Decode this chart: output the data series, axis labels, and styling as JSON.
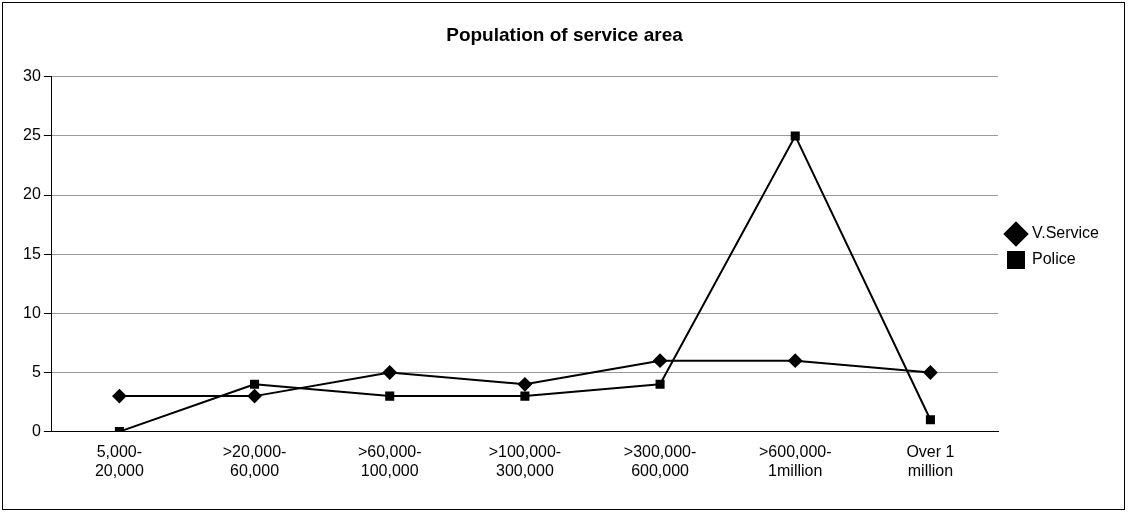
{
  "chart_data": {
    "type": "line",
    "title": "Population of service area",
    "categories": [
      "5,000-20,000",
      ">20,000-60,000",
      ">60,000-100,000",
      ">100,000-300,000",
      ">300,000-600,000",
      ">600,000-1million",
      "Over 1 million"
    ],
    "series": [
      {
        "name": "V.Service",
        "color": "#000000",
        "marker": "diamond",
        "values": [
          3,
          3,
          5,
          4,
          6,
          6,
          5
        ]
      },
      {
        "name": "Police",
        "color": "#000000",
        "marker": "square",
        "values": [
          0,
          4,
          3,
          3,
          4,
          25,
          1
        ]
      }
    ],
    "ylim": [
      0,
      30
    ],
    "yticks": [
      0,
      5,
      10,
      15,
      20,
      25,
      30
    ],
    "grid": "y",
    "legend": "right",
    "line_style": "solid"
  }
}
